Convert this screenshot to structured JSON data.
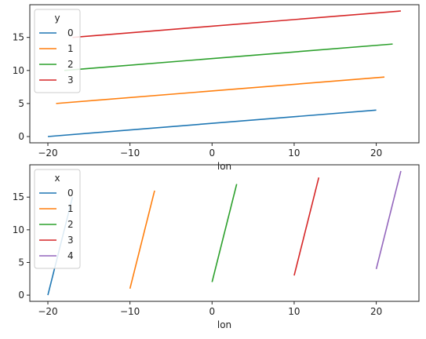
{
  "chart_data": [
    {
      "type": "line",
      "xlabel": "lon",
      "ylabel": "",
      "xlim": [
        -22.2,
        25.2
      ],
      "ylim": [
        -0.95,
        19.95
      ],
      "xticks": [
        -20,
        -10,
        0,
        10,
        20
      ],
      "yticks": [
        0,
        5,
        10,
        15
      ],
      "legend": {
        "title": "y",
        "location": "top-left"
      },
      "series": [
        {
          "name": "0",
          "color": "#1f77b4",
          "x": [
            -20,
            20
          ],
          "y": [
            0,
            4
          ]
        },
        {
          "name": "1",
          "color": "#ff7f0e",
          "x": [
            -19,
            21
          ],
          "y": [
            5,
            9
          ]
        },
        {
          "name": "2",
          "color": "#2ca02c",
          "x": [
            -18,
            22
          ],
          "y": [
            10,
            14
          ]
        },
        {
          "name": "3",
          "color": "#d62728",
          "x": [
            -17,
            23
          ],
          "y": [
            15,
            19
          ]
        }
      ]
    },
    {
      "type": "line",
      "xlabel": "lon",
      "ylabel": "",
      "xlim": [
        -22.2,
        25.2
      ],
      "ylim": [
        -0.95,
        19.95
      ],
      "xticks": [
        -20,
        -10,
        0,
        10,
        20
      ],
      "yticks": [
        0,
        5,
        10,
        15
      ],
      "legend": {
        "title": "x",
        "location": "top-left"
      },
      "series": [
        {
          "name": "0",
          "color": "#1f77b4",
          "x": [
            -20,
            -17
          ],
          "y": [
            0,
            15
          ]
        },
        {
          "name": "1",
          "color": "#ff7f0e",
          "x": [
            -10,
            -7
          ],
          "y": [
            1,
            16
          ]
        },
        {
          "name": "2",
          "color": "#2ca02c",
          "x": [
            0,
            3
          ],
          "y": [
            2,
            17
          ]
        },
        {
          "name": "3",
          "color": "#d62728",
          "x": [
            10,
            13
          ],
          "y": [
            3,
            18
          ]
        },
        {
          "name": "4",
          "color": "#9467bd",
          "x": [
            20,
            23
          ],
          "y": [
            4,
            19
          ]
        }
      ]
    }
  ]
}
